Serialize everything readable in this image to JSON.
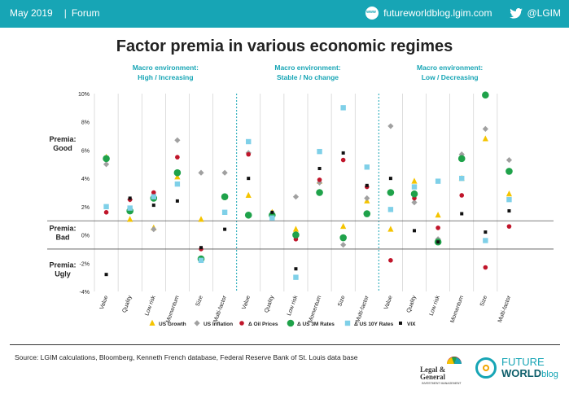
{
  "header": {
    "date": "May 2019",
    "section": "Forum",
    "site": "futureworldblog.lgim.com",
    "handle": "@LGIM",
    "globe_icon": "globe-icon",
    "twitter_icon": "twitter-icon"
  },
  "footer": {
    "source": "Source: LGIM calculations, Bloomberg, Kenneth French database, Federal Reserve Bank of St. Louis data base",
    "lg_name": "Legal & General",
    "lg_sub": "INVESTMENT MANAGEMENT",
    "fw_top": "FUTURE",
    "fw_bottom": "WORLD",
    "fw_blog": "blog"
  },
  "colors": {
    "accent": "#17a5b5"
  },
  "chart_data": {
    "type": "scatter",
    "title": "Factor premia in various economic regimes",
    "ylim": [
      -4,
      10
    ],
    "yticks": [
      "10%",
      "8%",
      "6%",
      "4%",
      "2%",
      "0%",
      "-2%",
      "-4%"
    ],
    "region_labels": [
      {
        "text": "Premia:\nGood"
      },
      {
        "text": "Premia:\nBad"
      },
      {
        "text": "Premia:\nUgly"
      }
    ],
    "region_bounds": [
      1,
      -1
    ],
    "groups": [
      {
        "label_line1": "Macro environment:",
        "label_line2": "High / Increasing"
      },
      {
        "label_line1": "Macro environment:",
        "label_line2": "Stable / No change"
      },
      {
        "label_line1": "Macro environment:",
        "label_line2": "Low / Decreasing"
      }
    ],
    "categories": [
      "Value",
      "Quality",
      "Low risk",
      "Momentum",
      "Size",
      "Multi-factor",
      "Value",
      "Quality",
      "Low risk",
      "Momentum",
      "Size",
      "Multi-factor",
      "Value",
      "Quality",
      "Low risk",
      "Momentum",
      "Size",
      "Multi-factor"
    ],
    "series": [
      {
        "name": "US Growth",
        "color": "#f5c400",
        "marker": "triangle",
        "values": [
          5.5,
          1.1,
          0.5,
          4.1,
          1.1,
          2.7,
          2.8,
          1.6,
          0.4,
          3.8,
          0.6,
          2.4,
          0.4,
          3.8,
          1.4,
          4.0,
          6.8,
          2.9
        ]
      },
      {
        "name": "US Inflation",
        "color": "#a0a0a0",
        "marker": "diamond",
        "values": [
          5.0,
          2.5,
          0.4,
          6.7,
          4.4,
          4.4,
          5.8,
          1.4,
          2.7,
          3.7,
          -0.7,
          2.6,
          7.7,
          2.3,
          -0.3,
          5.7,
          7.5,
          5.3
        ]
      },
      {
        "name": "Δ Oil Prices",
        "color": "#c0152a",
        "marker": "circle",
        "values": [
          1.6,
          2.5,
          3.0,
          5.5,
          -1.0,
          2.7,
          5.7,
          1.4,
          -0.3,
          3.9,
          5.3,
          3.4,
          -1.8,
          2.6,
          0.5,
          2.8,
          -2.3,
          0.6
        ]
      },
      {
        "name": "Δ US 3M Rates",
        "color": "#1fa24a",
        "marker": "circle",
        "values": [
          5.4,
          1.7,
          2.6,
          4.4,
          -1.7,
          2.7,
          1.4,
          1.4,
          0.0,
          3.0,
          -0.2,
          1.5,
          3.0,
          2.9,
          -0.5,
          5.4,
          9.9,
          4.5
        ]
      },
      {
        "name": "Δ US 10Y Rates",
        "color": "#7fd0e8",
        "marker": "square",
        "values": [
          2.0,
          1.9,
          2.7,
          3.6,
          -1.8,
          1.6,
          6.6,
          1.2,
          -3.0,
          5.9,
          9.0,
          4.8,
          1.8,
          3.4,
          3.8,
          4.0,
          -0.4,
          2.5
        ]
      },
      {
        "name": "VIX",
        "color": "#111111",
        "marker": "square",
        "values": [
          -2.8,
          2.6,
          2.1,
          2.4,
          -0.9,
          0.4,
          4.0,
          1.6,
          -2.4,
          4.7,
          5.8,
          3.5,
          4.0,
          0.3,
          -0.5,
          1.5,
          0.2,
          1.7
        ]
      }
    ]
  }
}
